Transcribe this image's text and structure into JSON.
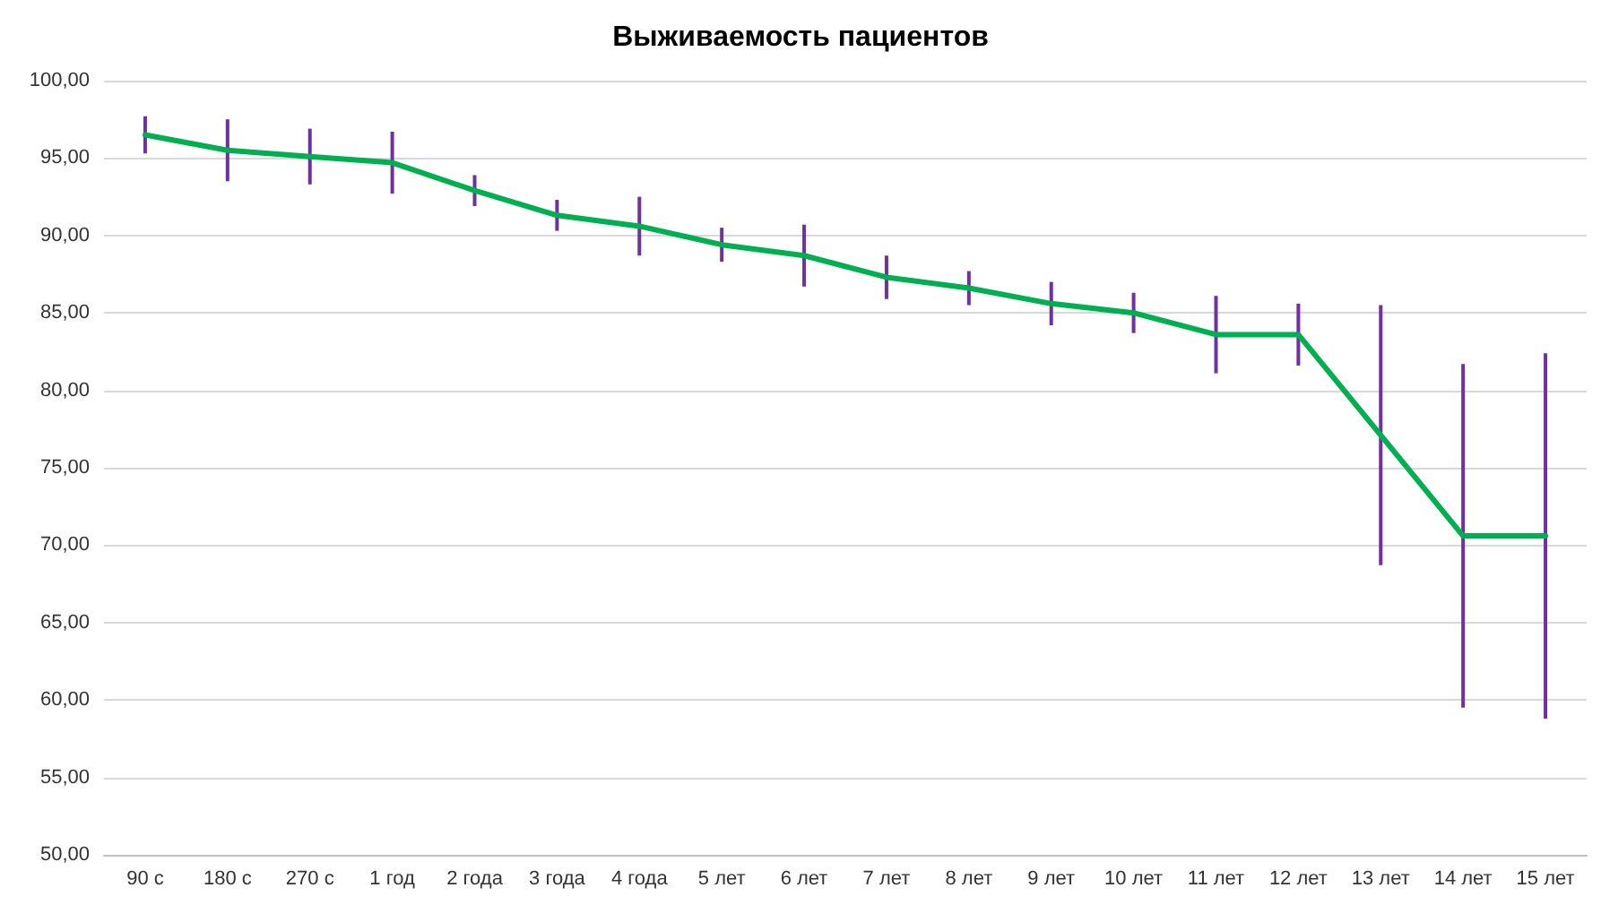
{
  "chart_data": {
    "type": "line",
    "title": "Выживаемость пациентов",
    "categories": [
      "90 с",
      "180 с",
      "270 с",
      "1 год",
      "2 года",
      "3 года",
      "4 года",
      "5 лет",
      "6 лет",
      "7 лет",
      "8 лет",
      "9 лет",
      "10 лет",
      "11 лет",
      "12 лет",
      "13 лет",
      "14 лет",
      "15 лет"
    ],
    "series": [
      {
        "color": "#00b050",
        "values": [
          96.5,
          95.5,
          95.1,
          94.7,
          92.9,
          91.3,
          90.6,
          89.4,
          88.7,
          87.3,
          86.6,
          85.6,
          85.0,
          83.6,
          83.6,
          77.1,
          70.6,
          70.6
        ],
        "errors": [
          1.2,
          2,
          1.8,
          2,
          1,
          1,
          1.9,
          1.1,
          2,
          1.4,
          1.1,
          1.4,
          1.3,
          2.5,
          2,
          8.4,
          11.1,
          11.8
        ]
      }
    ],
    "ylim": [
      50,
      100
    ],
    "yticks": [
      {
        "value": 50,
        "label": "50,00"
      },
      {
        "value": 55,
        "label": "55,00"
      },
      {
        "value": 60,
        "label": "60,00"
      },
      {
        "value": 65,
        "label": "65,00"
      },
      {
        "value": 70,
        "label": "70,00"
      },
      {
        "value": 75,
        "label": "75,00"
      },
      {
        "value": 80,
        "label": "80,00"
      },
      {
        "value": 85,
        "label": "85,00"
      },
      {
        "value": 90,
        "label": "90,00"
      },
      {
        "value": 95,
        "label": "95,00"
      },
      {
        "value": 100,
        "label": "100,00"
      }
    ],
    "grid": "y",
    "marker": "none",
    "line_style": "solid"
  }
}
